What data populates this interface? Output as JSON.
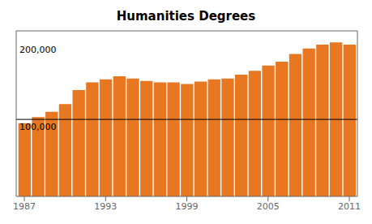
{
  "chart_data": {
    "type": "bar",
    "title": "Humanities Degrees",
    "x": [
      1987,
      1988,
      1989,
      1990,
      1991,
      1992,
      1993,
      1994,
      1995,
      1996,
      1997,
      1998,
      1999,
      2000,
      2001,
      2002,
      2003,
      2004,
      2005,
      2006,
      2007,
      2008,
      2009,
      2010,
      2011
    ],
    "values": [
      95000,
      103000,
      110000,
      120000,
      138000,
      148000,
      152000,
      156000,
      153000,
      150000,
      148000,
      148000,
      146000,
      149000,
      152000,
      153000,
      158000,
      163000,
      170000,
      175000,
      185000,
      192000,
      197000,
      200000,
      197000
    ],
    "color": "#E87722",
    "xlim": [
      1986.4,
      2011.6
    ],
    "xticks": [
      1987,
      1993,
      1999,
      2005,
      2011
    ],
    "ylim": [
      0,
      215000
    ],
    "tick_labels": "x",
    "grid": false,
    "reference_line": {
      "y": 100000,
      "label": "100,000"
    },
    "annotations": [
      {
        "y": 200000,
        "label": "200,000"
      }
    ]
  }
}
